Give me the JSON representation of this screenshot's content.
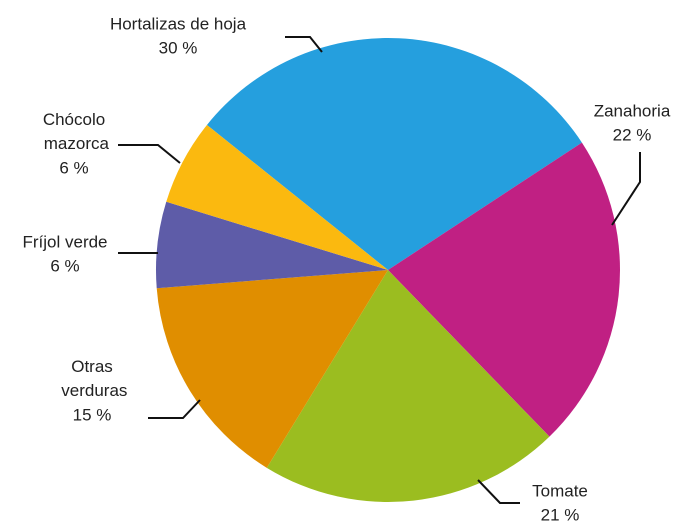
{
  "chart_data": {
    "type": "pie",
    "categories": [
      "Hortalizas de hoja",
      "Zanahoria",
      "Tomate",
      "Otras verduras",
      "Fríjol verde",
      "Chócolo mazorca"
    ],
    "values": [
      30,
      22,
      21,
      15,
      6,
      6
    ],
    "value_labels": [
      "30 %",
      "22 %",
      "21 %",
      "15 %",
      "6 %",
      "6 %"
    ],
    "colors": [
      "#259fde",
      "#c02083",
      "#9bbd20",
      "#e08e00",
      "#5e5ca8",
      "#fbb90f"
    ]
  }
}
